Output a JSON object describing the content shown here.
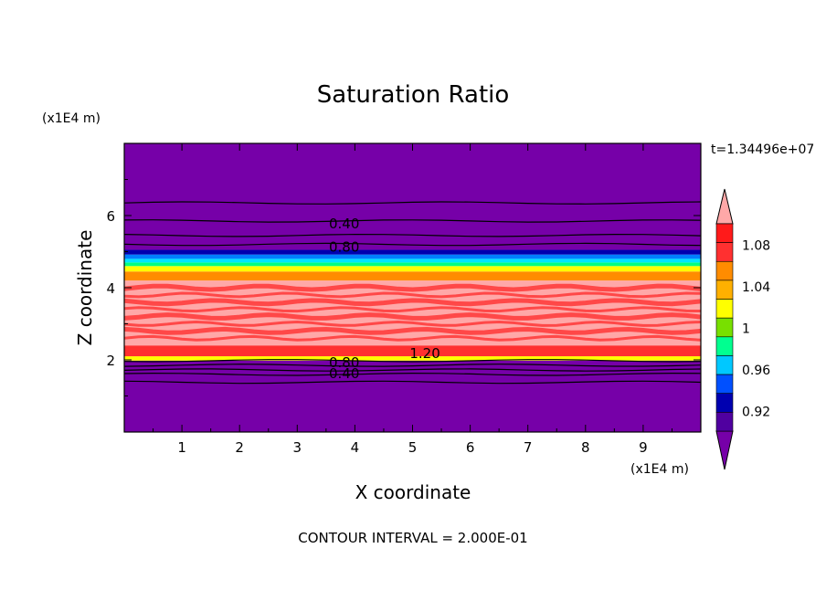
{
  "chart_data": {
    "type": "heatmap",
    "title": "Saturation Ratio",
    "xlabel": "X coordinate",
    "ylabel": "Z coordinate",
    "x_unit_label": "(x1E4 m)",
    "y_unit_label": "(x1E4 m)",
    "time_label": "t=1.34496e+07",
    "footer": "CONTOUR INTERVAL = 2.000E-01",
    "xlim": [
      0,
      10
    ],
    "ylim": [
      0,
      8
    ],
    "x_ticks": [
      "1",
      "2",
      "3",
      "4",
      "5",
      "6",
      "7",
      "8",
      "9"
    ],
    "y_ticks": [
      "2",
      "4",
      "6"
    ],
    "contour_labels": [
      {
        "text": "0.40",
        "x": 3.55,
        "z": 5.8
      },
      {
        "text": "0.80",
        "x": 3.55,
        "z": 5.15
      },
      {
        "text": "1.20",
        "x": 4.95,
        "z": 2.2
      },
      {
        "text": "0.80",
        "x": 3.55,
        "z": 1.95
      },
      {
        "text": "0.40",
        "x": 3.55,
        "z": 1.65
      }
    ],
    "layers": [
      {
        "z": [
          0,
          1.98
        ],
        "level": "below",
        "fill": "#7600a8"
      },
      {
        "z": [
          1.98,
          2.1
        ],
        "level": "1.04",
        "fill": "#ffff00"
      },
      {
        "z": [
          2.1,
          2.4
        ],
        "level": "1.08",
        "fill": "#ff3030"
      },
      {
        "z": [
          2.4,
          4.2
        ],
        "level": "above",
        "fill": "#ffa8a8"
      },
      {
        "z": [
          4.2,
          4.45
        ],
        "level": "1.06",
        "fill": "#ff8c00"
      },
      {
        "z": [
          4.45,
          4.6
        ],
        "level": "1.04",
        "fill": "#ffff00"
      },
      {
        "z": [
          4.6,
          4.7
        ],
        "level": "1.00",
        "fill": "#00ff80"
      },
      {
        "z": [
          4.7,
          4.8
        ],
        "level": "0.98",
        "fill": "#00e6ff"
      },
      {
        "z": [
          4.8,
          4.92
        ],
        "level": "0.96",
        "fill": "#0080ff"
      },
      {
        "z": [
          4.92,
          5.05
        ],
        "level": "0.92",
        "fill": "#0000b0"
      },
      {
        "z": [
          5.05,
          8
        ],
        "level": "below",
        "fill": "#7600a8"
      }
    ],
    "contour_lines_z": [
      6.35,
      5.85,
      5.45,
      5.2,
      1.98,
      1.85,
      1.72,
      1.6,
      1.38
    ],
    "colorbar": {
      "levels": [
        "0.92",
        "0.96",
        "1",
        "1.04",
        "1.08"
      ],
      "colors": [
        "#7600a8",
        "#5000a0",
        "#0000b0",
        "#0050ff",
        "#00c8ff",
        "#00ff90",
        "#78e000",
        "#ffff00",
        "#ffb000",
        "#ff8c00",
        "#ff3030",
        "#ff1a1a",
        "#ffa8a8"
      ]
    }
  }
}
